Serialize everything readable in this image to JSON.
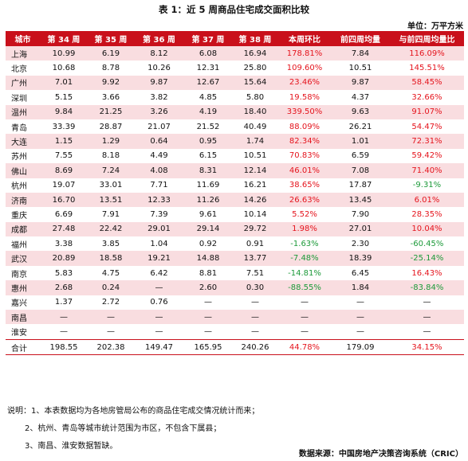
{
  "title": "表 1：近 5 周商品住宅成交面积比较",
  "unit": "单位：万平方米",
  "headers": [
    "城市",
    "第 34 周",
    "第 35 周",
    "第 36 周",
    "第 37 周",
    "第 38 周",
    "本周环比",
    "前四周均量",
    "与前四周均量比"
  ],
  "rows": [
    {
      "city": "上海",
      "w34": "10.99",
      "w35": "6.19",
      "w36": "8.12",
      "w37": "6.08",
      "w38": "16.94",
      "wow": "178.81%",
      "avg4": "7.84",
      "vs4": "116.09%"
    },
    {
      "city": "北京",
      "w34": "10.68",
      "w35": "8.78",
      "w36": "10.26",
      "w37": "12.31",
      "w38": "25.80",
      "wow": "109.60%",
      "avg4": "10.51",
      "vs4": "145.51%"
    },
    {
      "city": "广州",
      "w34": "7.01",
      "w35": "9.92",
      "w36": "9.87",
      "w37": "12.67",
      "w38": "15.64",
      "wow": "23.46%",
      "avg4": "9.87",
      "vs4": "58.45%"
    },
    {
      "city": "深圳",
      "w34": "5.15",
      "w35": "3.66",
      "w36": "3.82",
      "w37": "4.85",
      "w38": "5.80",
      "wow": "19.58%",
      "avg4": "4.37",
      "vs4": "32.66%"
    },
    {
      "city": "温州",
      "w34": "9.84",
      "w35": "21.25",
      "w36": "3.26",
      "w37": "4.19",
      "w38": "18.40",
      "wow": "339.50%",
      "avg4": "9.63",
      "vs4": "91.07%"
    },
    {
      "city": "青岛",
      "w34": "33.39",
      "w35": "28.87",
      "w36": "21.07",
      "w37": "21.52",
      "w38": "40.49",
      "wow": "88.09%",
      "avg4": "26.21",
      "vs4": "54.47%"
    },
    {
      "city": "大连",
      "w34": "1.15",
      "w35": "1.29",
      "w36": "0.64",
      "w37": "0.95",
      "w38": "1.74",
      "wow": "82.34%",
      "avg4": "1.01",
      "vs4": "72.31%"
    },
    {
      "city": "苏州",
      "w34": "7.55",
      "w35": "8.18",
      "w36": "4.49",
      "w37": "6.15",
      "w38": "10.51",
      "wow": "70.83%",
      "avg4": "6.59",
      "vs4": "59.42%"
    },
    {
      "city": "佛山",
      "w34": "8.69",
      "w35": "7.24",
      "w36": "4.08",
      "w37": "8.31",
      "w38": "12.14",
      "wow": "46.01%",
      "avg4": "7.08",
      "vs4": "71.40%"
    },
    {
      "city": "杭州",
      "w34": "19.07",
      "w35": "33.01",
      "w36": "7.71",
      "w37": "11.69",
      "w38": "16.21",
      "wow": "38.65%",
      "avg4": "17.87",
      "vs4": "-9.31%"
    },
    {
      "city": "济南",
      "w34": "16.70",
      "w35": "13.51",
      "w36": "12.33",
      "w37": "11.26",
      "w38": "14.26",
      "wow": "26.63%",
      "avg4": "13.45",
      "vs4": "6.01%"
    },
    {
      "city": "重庆",
      "w34": "6.69",
      "w35": "7.91",
      "w36": "7.39",
      "w37": "9.61",
      "w38": "10.14",
      "wow": "5.52%",
      "avg4": "7.90",
      "vs4": "28.35%"
    },
    {
      "city": "成都",
      "w34": "27.48",
      "w35": "22.42",
      "w36": "29.01",
      "w37": "29.14",
      "w38": "29.72",
      "wow": "1.98%",
      "avg4": "27.01",
      "vs4": "10.04%"
    },
    {
      "city": "福州",
      "w34": "3.38",
      "w35": "3.85",
      "w36": "1.04",
      "w37": "0.92",
      "w38": "0.91",
      "wow": "-1.63%",
      "avg4": "2.30",
      "vs4": "-60.45%"
    },
    {
      "city": "武汉",
      "w34": "20.89",
      "w35": "18.58",
      "w36": "19.21",
      "w37": "14.88",
      "w38": "13.77",
      "wow": "-7.48%",
      "avg4": "18.39",
      "vs4": "-25.14%"
    },
    {
      "city": "南京",
      "w34": "5.83",
      "w35": "4.75",
      "w36": "6.42",
      "w37": "8.81",
      "w38": "7.51",
      "wow": "-14.81%",
      "avg4": "6.45",
      "vs4": "16.43%"
    },
    {
      "city": "惠州",
      "w34": "2.68",
      "w35": "0.24",
      "w36": "—",
      "w37": "2.60",
      "w38": "0.30",
      "wow": "-88.55%",
      "avg4": "1.84",
      "vs4": "-83.84%"
    },
    {
      "city": "嘉兴",
      "w34": "1.37",
      "w35": "2.72",
      "w36": "0.76",
      "w37": "—",
      "w38": "—",
      "wow": "—",
      "avg4": "—",
      "vs4": "—"
    },
    {
      "city": "南昌",
      "w34": "—",
      "w35": "—",
      "w36": "—",
      "w37": "—",
      "w38": "—",
      "wow": "—",
      "avg4": "—",
      "vs4": "—"
    },
    {
      "city": "淮安",
      "w34": "—",
      "w35": "—",
      "w36": "—",
      "w37": "—",
      "w38": "—",
      "wow": "—",
      "avg4": "—",
      "vs4": "—"
    }
  ],
  "total": {
    "city": "合计",
    "w34": "198.55",
    "w35": "202.38",
    "w36": "149.47",
    "w37": "165.95",
    "w38": "240.26",
    "wow": "44.78%",
    "avg4": "179.09",
    "vs4": "34.15%"
  },
  "notes": [
    "说明：1、本表数据均为各地房管局公布的商品住宅成交情况统计而来；",
    "2、杭州、青岛等城市统计范围为市区，不包含下属县；",
    "3、南昌、淮安数据暂缺。"
  ],
  "source": "数据来源：中国房地产决策咨询系统（CRIC）",
  "colors": {
    "header_bg": "#c9101b",
    "row_stripe": "#f9dde0",
    "positive": "#e5141d",
    "negative": "#1d9a3a"
  }
}
